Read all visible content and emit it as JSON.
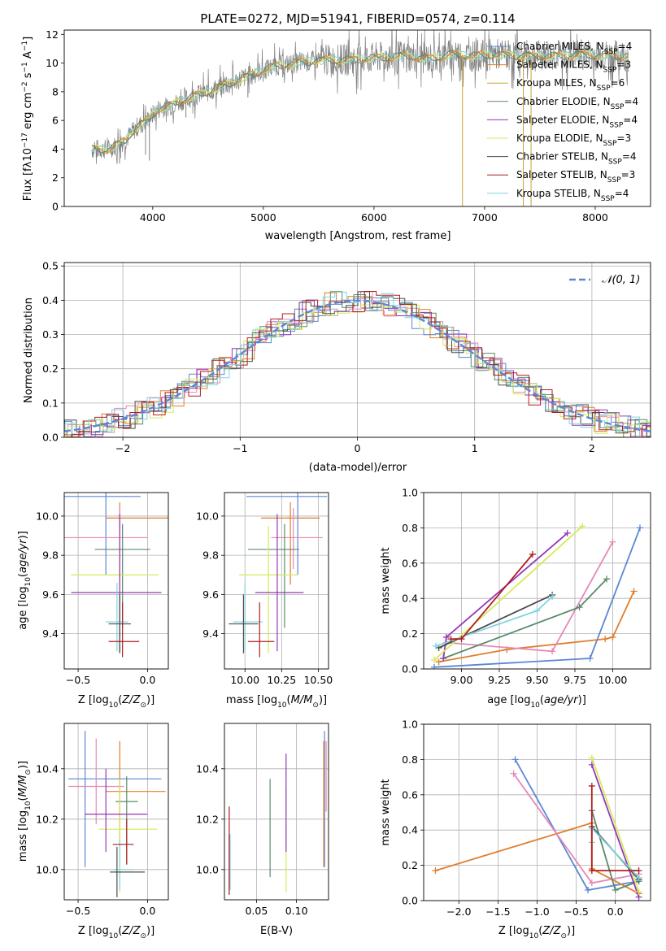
{
  "figure_title": "PLATE=0272, MJD=51941, FIBERID=0574, z=0.114",
  "colors": {
    "Chabrier MILES": "#5b87d4",
    "Salpeter MILES": "#e07e2d",
    "Kroupa MILES": "#c9a233",
    "Chabrier ELODIE": "#5a8a6a",
    "Salpeter ELODIE": "#9636b8",
    "Kroupa ELODIE": "#d4ea5e",
    "Chabrier STELIB": "#4d4d4d",
    "Salpeter STELIB": "#b01e22",
    "Kroupa STELIB": "#7fd4de",
    "data": "#808080",
    "pink": "#e389b9",
    "gaussian": "#5b87d4"
  },
  "chart_data": [
    {
      "id": "spectrum",
      "type": "line",
      "xlabel": "wavelength [Angstrom, rest frame]",
      "ylabel": "Flux [f",
      "xlim": [
        3200,
        8500
      ],
      "ylim": [
        0,
        12.3
      ],
      "xticks": [
        "4000",
        "5000",
        "6000",
        "7000",
        "8000"
      ],
      "yticks": [
        "0",
        "2",
        "4",
        "6",
        "8",
        "10",
        "12"
      ],
      "legend_position": "upper-right",
      "legend": [
        {
          "name": "Chabrier MILES",
          "nssp": "4"
        },
        {
          "name": "Salpeter MILES",
          "nssp": "3"
        },
        {
          "name": "Kroupa MILES",
          "nssp": "6"
        },
        {
          "name": "Chabrier ELODIE",
          "nssp": "4"
        },
        {
          "name": "Salpeter ELODIE",
          "nssp": "4"
        },
        {
          "name": "Kroupa ELODIE",
          "nssp": "3"
        },
        {
          "name": "Chabrier STELIB",
          "nssp": "4"
        },
        {
          "name": "Salpeter STELIB",
          "nssp": "3"
        },
        {
          "name": "Kroupa STELIB",
          "nssp": "4"
        }
      ],
      "continuum": [
        [
          3450,
          4.0
        ],
        [
          3600,
          4.0
        ],
        [
          3750,
          4.6
        ],
        [
          3850,
          5.5
        ],
        [
          3950,
          6.0
        ],
        [
          4050,
          6.8
        ],
        [
          4150,
          7.0
        ],
        [
          4300,
          7.5
        ],
        [
          4500,
          8.0
        ],
        [
          4700,
          8.6
        ],
        [
          4900,
          9.2
        ],
        [
          5100,
          9.8
        ],
        [
          5300,
          10.0
        ],
        [
          5500,
          10.2
        ],
        [
          5700,
          10.2
        ],
        [
          5900,
          10.3
        ],
        [
          6100,
          10.4
        ],
        [
          6300,
          10.5
        ],
        [
          6500,
          10.3
        ],
        [
          6700,
          10.6
        ],
        [
          6900,
          10.5
        ],
        [
          7100,
          10.6
        ],
        [
          7300,
          10.5
        ],
        [
          7500,
          10.5
        ],
        [
          7700,
          10.5
        ],
        [
          7900,
          10.6
        ],
        [
          8100,
          10.5
        ],
        [
          8300,
          10.5
        ]
      ],
      "absorption_dips": [
        [
          3500,
          3.5
        ],
        [
          3700,
          3.0
        ],
        [
          3935,
          3.6
        ],
        [
          3970,
          3.2
        ],
        [
          4300,
          6.2
        ],
        [
          4860,
          7.6
        ],
        [
          5175,
          9.0
        ],
        [
          5895,
          9.6
        ],
        [
          6800,
          0
        ],
        [
          7350,
          0
        ],
        [
          7420,
          0
        ]
      ]
    },
    {
      "id": "residuals",
      "type": "line",
      "xlabel": "(data-model)/error",
      "ylabel": "Normed distribution",
      "xlim": [
        -2.5,
        2.5
      ],
      "ylim": [
        0,
        0.51
      ],
      "xticks": [
        "−2",
        "−1",
        "0",
        "1",
        "2"
      ],
      "yticks": [
        "0.0",
        "0.1",
        "0.2",
        "0.3",
        "0.4",
        "0.5"
      ],
      "legend": [
        "𝒩(0, 1)"
      ],
      "grid": true
    },
    {
      "id": "age_vs_Z",
      "type": "scatter",
      "xlabel": "Z [log₁₀(Z/Z⊙)]",
      "ylabel": "age  [log₁₀(age/yr)]",
      "xlim": [
        -0.6,
        0.15
      ],
      "ylim": [
        9.22,
        10.12
      ],
      "xticks": [
        "−0.5",
        "0.0"
      ],
      "yticks": [
        "9.4",
        "9.6",
        "9.8",
        "10.0"
      ],
      "grid": true,
      "points": [
        {
          "x": -0.3,
          "xerr": [
            0.55,
            0.25
          ],
          "y": 10.1,
          "yerr": [
            0.4,
            0.1
          ],
          "color": "Chabrier MILES"
        },
        {
          "x": -0.2,
          "xerr": [
            0.1,
            0.35
          ],
          "y": 9.99,
          "yerr": [
            0.34,
            0.08
          ],
          "color": "Salpeter MILES"
        },
        {
          "x": -0.2,
          "xerr": [
            0.4,
            0.2
          ],
          "y": 9.89,
          "yerr": [
            0.16,
            0.15
          ],
          "color": "pink"
        },
        {
          "x": -0.18,
          "xerr": [
            0.2,
            0.2
          ],
          "y": 9.83,
          "yerr": [
            0.4,
            0.13
          ],
          "color": "Chabrier ELODIE"
        },
        {
          "x": -0.2,
          "xerr": [
            0.35,
            0.28
          ],
          "y": 9.7,
          "yerr": [
            0.4,
            0.25
          ],
          "color": "Kroupa ELODIE"
        },
        {
          "x": -0.2,
          "xerr": [
            0.35,
            0.3
          ],
          "y": 9.61,
          "yerr": [
            0.3,
            0.4
          ],
          "color": "Salpeter ELODIE"
        },
        {
          "x": -0.22,
          "xerr": [
            0.08,
            0.08
          ],
          "y": 9.46,
          "yerr": [
            0.15,
            0.2
          ],
          "color": "Kroupa STELIB"
        },
        {
          "x": -0.2,
          "xerr": [
            0.08,
            0.08
          ],
          "y": 9.45,
          "yerr": [
            0.15,
            0.15
          ],
          "color": "Chabrier STELIB"
        },
        {
          "x": -0.18,
          "xerr": [
            0.1,
            0.12
          ],
          "y": 9.36,
          "yerr": [
            0.08,
            0.2
          ],
          "color": "Salpeter STELIB"
        }
      ]
    },
    {
      "id": "age_vs_mass",
      "type": "scatter",
      "xlabel": "mass [log₁₀(M/M⊙)]",
      "ylabel": "",
      "xlim": [
        9.86,
        10.57
      ],
      "ylim": [
        9.22,
        10.12
      ],
      "xticks": [
        "10.00",
        "10.25",
        "10.50"
      ],
      "yticks": [
        "9.4",
        "9.6",
        "9.8",
        "10.0"
      ],
      "grid": true,
      "points": [
        {
          "x": 10.36,
          "xerr": [
            0.35,
            0.2
          ],
          "y": 10.1,
          "yerr": [
            0.4,
            0.1
          ],
          "color": "Chabrier MILES"
        },
        {
          "x": 10.31,
          "xerr": [
            0.2,
            0.2
          ],
          "y": 9.99,
          "yerr": [
            0.34,
            0.08
          ],
          "color": "Salpeter MILES"
        },
        {
          "x": 10.33,
          "xerr": [
            0.15,
            0.2
          ],
          "y": 9.89,
          "yerr": [
            0.16,
            0.15
          ],
          "color": "pink"
        },
        {
          "x": 10.27,
          "xerr": [
            0.25,
            0.1
          ],
          "y": 9.83,
          "yerr": [
            0.4,
            0.13
          ],
          "color": "Chabrier ELODIE"
        },
        {
          "x": 10.16,
          "xerr": [
            0.2,
            0.2
          ],
          "y": 9.7,
          "yerr": [
            0.4,
            0.25
          ],
          "color": "Kroupa ELODIE"
        },
        {
          "x": 10.22,
          "xerr": [
            0.15,
            0.18
          ],
          "y": 9.61,
          "yerr": [
            0.3,
            0.4
          ],
          "color": "Salpeter ELODIE"
        },
        {
          "x": 10.0,
          "xerr": [
            0.08,
            0.12
          ],
          "y": 9.46,
          "yerr": [
            0.15,
            0.2
          ],
          "color": "Kroupa STELIB"
        },
        {
          "x": 9.99,
          "xerr": [
            0.1,
            0.1
          ],
          "y": 9.45,
          "yerr": [
            0.15,
            0.15
          ],
          "color": "Chabrier STELIB"
        },
        {
          "x": 10.1,
          "xerr": [
            0.08,
            0.1
          ],
          "y": 9.36,
          "yerr": [
            0.08,
            0.2
          ],
          "color": "Salpeter STELIB"
        }
      ]
    },
    {
      "id": "mass_weight_vs_age",
      "type": "line",
      "xlabel": "age  [log₁₀(age/yr)]",
      "ylabel": "mass weight",
      "xlim": [
        8.75,
        10.25
      ],
      "ylim": [
        0,
        1.0
      ],
      "xticks": [
        "9.00",
        "9.25",
        "9.50",
        "9.75",
        "10.00"
      ],
      "yticks": [
        "0.0",
        "0.2",
        "0.4",
        "0.6",
        "0.8",
        "1.0"
      ],
      "grid": true,
      "series": [
        {
          "color": "Chabrier MILES",
          "x": [
            8.82,
            9.85,
            10.18
          ],
          "y": [
            0.01,
            0.06,
            0.8
          ]
        },
        {
          "color": "Salpeter MILES",
          "x": [
            8.85,
            9.3,
            9.95,
            10.0,
            10.14
          ],
          "y": [
            0.04,
            0.11,
            0.17,
            0.18,
            0.44
          ]
        },
        {
          "color": "pink",
          "x": [
            8.9,
            9.6,
            10.0
          ],
          "y": [
            0.15,
            0.1,
            0.72
          ]
        },
        {
          "color": "Chabrier ELODIE",
          "x": [
            8.88,
            9.78,
            9.96
          ],
          "y": [
            0.06,
            0.35,
            0.51
          ]
        },
        {
          "color": "Salpeter ELODIE",
          "x": [
            8.88,
            8.9,
            9.7
          ],
          "y": [
            0.06,
            0.18,
            0.77
          ]
        },
        {
          "color": "Kroupa ELODIE",
          "x": [
            8.82,
            9.8
          ],
          "y": [
            0.05,
            0.81
          ]
        },
        {
          "color": "Chabrier STELIB",
          "x": [
            8.85,
            9.6
          ],
          "y": [
            0.12,
            0.42
          ]
        },
        {
          "color": "Kroupa STELIB",
          "x": [
            8.83,
            9.5,
            9.6
          ],
          "y": [
            0.13,
            0.33,
            0.41
          ]
        },
        {
          "color": "Salpeter STELIB",
          "x": [
            8.93,
            9.0,
            9.47
          ],
          "y": [
            0.17,
            0.17,
            0.65
          ]
        }
      ]
    },
    {
      "id": "mass_vs_Z",
      "type": "scatter",
      "xlabel": "Z [log₁₀(Z/Z⊙)]",
      "ylabel": "mass [log₁₀(M/M⊙)]",
      "xlim": [
        -0.6,
        0.15
      ],
      "ylim": [
        9.88,
        10.58
      ],
      "xticks": [
        "−0.5",
        "0.0"
      ],
      "yticks": [
        "10.0",
        "10.2",
        "10.4"
      ],
      "grid": true,
      "points": [
        {
          "x": -0.45,
          "xerr": [
            0.12,
            0.55
          ],
          "y": 10.36,
          "yerr": [
            0.35,
            0.19
          ],
          "color": "Chabrier MILES"
        },
        {
          "x": -0.2,
          "xerr": [
            0.1,
            0.33
          ],
          "y": 10.31,
          "yerr": [
            0.2,
            0.2
          ],
          "color": "Salpeter MILES"
        },
        {
          "x": -0.37,
          "xerr": [
            0.2,
            0.2
          ],
          "y": 10.33,
          "yerr": [
            0.15,
            0.19
          ],
          "color": "pink"
        },
        {
          "x": -0.15,
          "xerr": [
            0.08,
            0.08
          ],
          "y": 10.27,
          "yerr": [
            0.25,
            0.1
          ],
          "color": "Chabrier ELODIE"
        },
        {
          "x": -0.2,
          "xerr": [
            0.15,
            0.27
          ],
          "y": 10.16,
          "yerr": [
            0.25,
            0.2
          ],
          "color": "Kroupa ELODIE"
        },
        {
          "x": -0.3,
          "xerr": [
            0.15,
            0.3
          ],
          "y": 10.22,
          "yerr": [
            0.15,
            0.18
          ],
          "color": "Salpeter ELODIE"
        },
        {
          "x": -0.2,
          "xerr": [
            0.05,
            0.1
          ],
          "y": 10.0,
          "yerr": [
            0.08,
            0.12
          ],
          "color": "Kroupa STELIB"
        },
        {
          "x": -0.22,
          "xerr": [
            0.05,
            0.2
          ],
          "y": 9.99,
          "yerr": [
            0.1,
            0.1
          ],
          "color": "Chabrier STELIB"
        },
        {
          "x": -0.15,
          "xerr": [
            0.1,
            0.05
          ],
          "y": 10.1,
          "yerr": [
            0.08,
            0.1
          ],
          "color": "Salpeter STELIB"
        }
      ]
    },
    {
      "id": "mass_vs_EBV",
      "type": "scatter",
      "xlabel": "E(B-V)",
      "ylabel": "",
      "xlim": [
        0.01,
        0.14
      ],
      "ylim": [
        9.88,
        10.58
      ],
      "xticks": [
        "0.05",
        "0.10"
      ],
      "yticks": [
        "10.0",
        "10.2",
        "10.4"
      ],
      "grid": true,
      "points": [
        {
          "x": 0.135,
          "y": 10.36,
          "yerr": [
            0.35,
            0.19
          ],
          "color": "Chabrier MILES"
        },
        {
          "x": 0.134,
          "y": 10.31,
          "yerr": [
            0.3,
            0.2
          ],
          "color": "Salpeter MILES"
        },
        {
          "x": 0.137,
          "y": 10.33,
          "yerr": [
            0.1,
            0.18
          ],
          "color": "pink"
        },
        {
          "x": 0.067,
          "y": 10.16,
          "yerr": [
            0.19,
            0.2
          ],
          "color": "Chabrier ELODIE"
        },
        {
          "x": 0.087,
          "y": 10.16,
          "yerr": [
            0.25,
            0.16
          ],
          "color": "Kroupa ELODIE"
        },
        {
          "x": 0.087,
          "y": 10.22,
          "yerr": [
            0.15,
            0.24
          ],
          "color": "Salpeter ELODIE"
        },
        {
          "x": 0.017,
          "y": 10.0,
          "yerr": [
            0.08,
            0.14
          ],
          "color": "Kroupa STELIB"
        },
        {
          "x": 0.016,
          "y": 10.0,
          "yerr": [
            0.1,
            0.14
          ],
          "color": "Chabrier STELIB"
        },
        {
          "x": 0.016,
          "y": 10.1,
          "yerr": [
            0.2,
            0.15
          ],
          "color": "Salpeter STELIB"
        }
      ]
    },
    {
      "id": "mass_weight_vs_Z",
      "type": "line",
      "xlabel": "Z [log₁₀(Z/Z⊙)]",
      "ylabel": "mass weight",
      "xlim": [
        -2.45,
        0.45
      ],
      "ylim": [
        0,
        1.0
      ],
      "xticks": [
        "−2.0",
        "−1.5",
        "−1.0",
        "−0.5",
        "0.0"
      ],
      "yticks": [
        "0.0",
        "0.2",
        "0.4",
        "0.6",
        "0.8",
        "1.0"
      ],
      "grid": true,
      "series": [
        {
          "color": "Chabrier MILES",
          "x": [
            -1.28,
            -0.35,
            0.3
          ],
          "y": [
            0.8,
            0.06,
            0.11
          ]
        },
        {
          "color": "Salpeter MILES",
          "x": [
            -2.3,
            -0.3,
            -0.3,
            0.3
          ],
          "y": [
            0.17,
            0.44,
            0.18,
            0.04
          ]
        },
        {
          "color": "pink",
          "x": [
            -1.3,
            -0.3,
            0.3
          ],
          "y": [
            0.72,
            0.1,
            0.15
          ]
        },
        {
          "color": "Chabrier ELODIE",
          "x": [
            -0.3,
            0.0,
            0.3
          ],
          "y": [
            0.51,
            0.06,
            0.11
          ]
        },
        {
          "color": "Salpeter ELODIE",
          "x": [
            -0.3,
            0.3
          ],
          "y": [
            0.77,
            0.02
          ]
        },
        {
          "color": "Kroupa ELODIE",
          "x": [
            -0.3,
            0.3
          ],
          "y": [
            0.81,
            0.05
          ]
        },
        {
          "color": "Chabrier STELIB",
          "x": [
            -0.3,
            0.3
          ],
          "y": [
            0.42,
            0.12
          ]
        },
        {
          "color": "Kroupa STELIB",
          "x": [
            -0.3,
            -0.3,
            0.3
          ],
          "y": [
            0.33,
            0.41,
            0.13
          ]
        },
        {
          "color": "Salpeter STELIB",
          "x": [
            -0.3,
            -0.3,
            0.3
          ],
          "y": [
            0.65,
            0.17,
            0.17
          ]
        }
      ]
    }
  ]
}
